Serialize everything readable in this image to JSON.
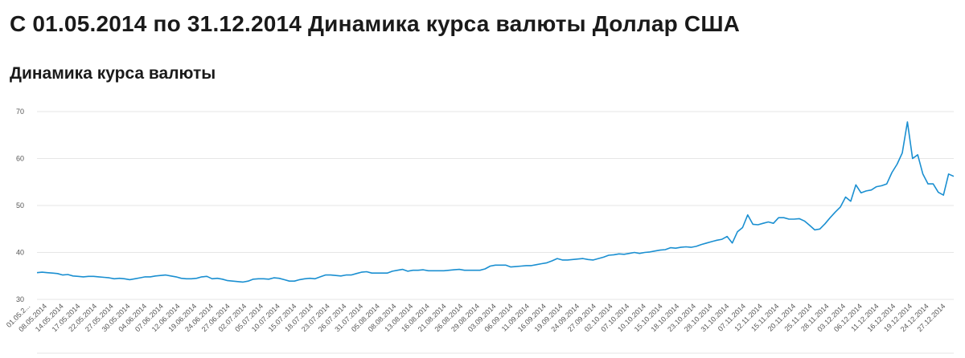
{
  "header": {
    "page_title": "С 01.05.2014 по 31.12.2014 Динамика курса валюты Доллар США",
    "section_title": "Динамика курса валюты"
  },
  "colors": {
    "line": "#1a8fd1",
    "grid": "#e6e6e6",
    "axis_text": "#555555"
  },
  "chart_data": {
    "type": "line",
    "title": "Динамика курса валюты",
    "xlabel": "",
    "ylabel": "",
    "ylim": [
      30,
      70
    ],
    "yticks": [
      30,
      40,
      50,
      60,
      70
    ],
    "grid": true,
    "xtick_labels": [
      "01.05.2...",
      "08.05.2014",
      "14.05.2014",
      "17.05.2014",
      "22.05.2014",
      "27.05.2014",
      "30.05.2014",
      "04.06.2014",
      "07.06.2014",
      "12.06.2014",
      "19.06.2014",
      "24.06.2014",
      "27.06.2014",
      "02.07.2014",
      "05.07.2014",
      "10.07.2014",
      "15.07.2014",
      "18.07.2014",
      "23.07.2014",
      "26.07.2014",
      "31.07.2014",
      "05.08.2014",
      "08.08.2014",
      "13.08.2014",
      "16.08.2014",
      "21.08.2014",
      "26.08.2014",
      "29.08.2014",
      "03.09.2014",
      "06.09.2014",
      "11.09.2014",
      "16.09.2014",
      "19.09.2014",
      "24.09.2014",
      "27.09.2014",
      "02.10.2014",
      "07.10.2014",
      "10.10.2014",
      "15.10.2014",
      "18.10.2014",
      "23.10.2014",
      "28.10.2014",
      "31.10.2014",
      "07.11.2014",
      "12.11.2014",
      "15.11.2014",
      "20.11.2014",
      "25.11.2014",
      "28.11.2014",
      "03.12.2014",
      "06.12.2014",
      "11.12.2014",
      "16.12.2014",
      "19.12.2014",
      "24.12.2014",
      "27.12.2014"
    ],
    "series": [
      {
        "values": [
          35.7,
          35.8,
          35.7,
          35.6,
          35.5,
          35.2,
          35.3,
          35.0,
          34.9,
          34.8,
          34.9,
          34.9,
          34.8,
          34.7,
          34.6,
          34.4,
          34.5,
          34.4,
          34.2,
          34.4,
          34.6,
          34.8,
          34.8,
          35.0,
          35.1,
          35.2,
          35.0,
          34.8,
          34.5,
          34.4,
          34.4,
          34.5,
          34.8,
          34.9,
          34.4,
          34.5,
          34.3,
          34.0,
          33.9,
          33.8,
          33.7,
          33.9,
          34.3,
          34.4,
          34.4,
          34.3,
          34.6,
          34.5,
          34.2,
          33.9,
          33.9,
          34.2,
          34.4,
          34.5,
          34.4,
          34.8,
          35.2,
          35.2,
          35.1,
          35.0,
          35.2,
          35.2,
          35.5,
          35.8,
          35.9,
          35.6,
          35.6,
          35.6,
          35.6,
          36.0,
          36.2,
          36.4,
          36.0,
          36.2,
          36.2,
          36.3,
          36.1,
          36.1,
          36.1,
          36.1,
          36.2,
          36.3,
          36.4,
          36.2,
          36.2,
          36.2,
          36.2,
          36.5,
          37.1,
          37.3,
          37.3,
          37.3,
          36.9,
          37.0,
          37.1,
          37.2,
          37.2,
          37.4,
          37.6,
          37.8,
          38.2,
          38.7,
          38.4,
          38.4,
          38.5,
          38.6,
          38.7,
          38.5,
          38.4,
          38.7,
          39.0,
          39.4,
          39.5,
          39.7,
          39.6,
          39.8,
          40.0,
          39.8,
          40.0,
          40.1,
          40.3,
          40.5,
          40.6,
          41.0,
          40.9,
          41.1,
          41.2,
          41.1,
          41.3,
          41.7,
          42.0,
          42.3,
          42.6,
          42.8,
          43.4,
          42.0,
          44.4,
          45.3,
          48.0,
          46.0,
          45.9,
          46.2,
          46.5,
          46.2,
          47.4,
          47.4,
          47.1,
          47.1,
          47.2,
          46.7,
          45.8,
          44.8,
          45.0,
          46.1,
          47.4,
          48.6,
          49.7,
          51.8,
          50.9,
          54.4,
          52.7,
          53.1,
          53.3,
          54.0,
          54.2,
          54.6,
          57.0,
          58.8,
          61.2,
          67.8,
          60.0,
          60.8,
          56.7,
          54.6,
          54.6,
          52.8,
          52.2,
          56.7,
          56.2
        ]
      }
    ]
  }
}
